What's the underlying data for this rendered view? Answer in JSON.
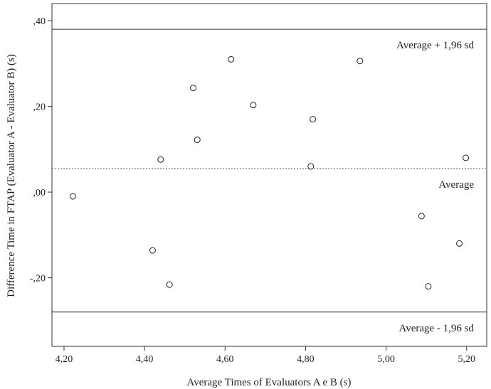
{
  "chart_data": {
    "type": "scatter",
    "xlabel": "Average Times of Evaluators A e B (s)",
    "ylabel": "Difference Time in FTAP (Evaluator A - Evaluator B) (s)",
    "xlim": [
      4.17,
      5.25
    ],
    "ylim": [
      -0.36,
      0.44
    ],
    "x_ticks": [
      {
        "value": 4.2,
        "label": "4,20"
      },
      {
        "value": 4.4,
        "label": "4,40"
      },
      {
        "value": 4.6,
        "label": "4,60"
      },
      {
        "value": 4.8,
        "label": "4,80"
      },
      {
        "value": 5.0,
        "label": "5,00"
      },
      {
        "value": 5.2,
        "label": "5,20"
      }
    ],
    "y_ticks": [
      {
        "value": 0.4,
        "label": ",40"
      },
      {
        "value": 0.2,
        "label": ",20"
      },
      {
        "value": 0.0,
        "label": ",00"
      },
      {
        "value": -0.2,
        "label": "-,20"
      }
    ],
    "grid": false,
    "reference_lines": [
      {
        "value": 0.38,
        "style": "solid",
        "label": "Average + 1,96 sd"
      },
      {
        "value": 0.055,
        "style": "dashed",
        "label": "Average"
      },
      {
        "value": -0.28,
        "style": "solid",
        "label": "Average - 1,96 sd"
      }
    ],
    "points": [
      {
        "x": 4.222,
        "y": -0.01
      },
      {
        "x": 4.42,
        "y": -0.136
      },
      {
        "x": 4.44,
        "y": 0.076
      },
      {
        "x": 4.462,
        "y": -0.216
      },
      {
        "x": 4.521,
        "y": 0.243
      },
      {
        "x": 4.531,
        "y": 0.122
      },
      {
        "x": 4.615,
        "y": 0.31
      },
      {
        "x": 4.67,
        "y": 0.203
      },
      {
        "x": 4.813,
        "y": 0.06
      },
      {
        "x": 4.818,
        "y": 0.17
      },
      {
        "x": 4.935,
        "y": 0.306
      },
      {
        "x": 5.088,
        "y": -0.056
      },
      {
        "x": 5.105,
        "y": -0.22
      },
      {
        "x": 5.182,
        "y": -0.12
      },
      {
        "x": 5.198,
        "y": 0.08
      }
    ]
  }
}
